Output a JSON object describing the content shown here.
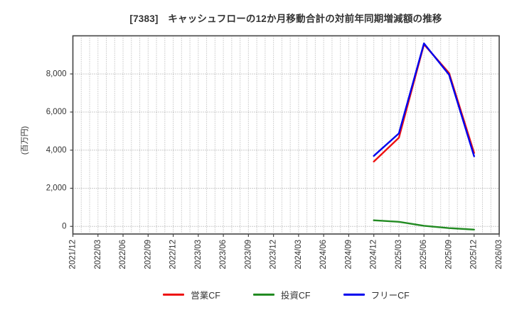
{
  "title": "[7383]　キャッシュフローの12か月移動合計の対前年同期増減額の推移",
  "y_axis_label": "(百万円)",
  "chart_data": {
    "type": "line",
    "categories": [
      "2021/12",
      "2022/03",
      "2022/06",
      "2022/09",
      "2022/12",
      "2023/03",
      "2023/06",
      "2023/09",
      "2023/12",
      "2024/03",
      "2024/06",
      "2024/09",
      "2024/12",
      "2025/03",
      "2025/06",
      "2025/09",
      "2025/12",
      "2026/03"
    ],
    "series": [
      {
        "name": "営業CF",
        "color": "#ee1111",
        "values": [
          null,
          null,
          null,
          null,
          null,
          null,
          null,
          null,
          null,
          null,
          null,
          null,
          3400,
          4650,
          9550,
          8050,
          3850,
          null
        ]
      },
      {
        "name": "投資CF",
        "color": "#228b22",
        "values": [
          null,
          null,
          null,
          null,
          null,
          null,
          null,
          null,
          null,
          null,
          null,
          null,
          320,
          240,
          30,
          -90,
          -170,
          null
        ]
      },
      {
        "name": "フリーCF",
        "color": "#0000ee",
        "values": [
          null,
          null,
          null,
          null,
          null,
          null,
          null,
          null,
          null,
          null,
          null,
          null,
          3700,
          4880,
          9600,
          7960,
          3680,
          null
        ]
      }
    ],
    "ylim": [
      -400,
      10000
    ],
    "yticks": [
      0,
      2000,
      4000,
      6000,
      8000
    ],
    "ytick_labels": [
      "0",
      "2,000",
      "4,000",
      "6,000",
      "8,000"
    ],
    "minor_x_divisions_per_interval": 3,
    "grid": "dotted",
    "legend_position": "bottom"
  },
  "colors": {
    "spine": "#444444",
    "grid_horizontal": "#999999",
    "grid_vertical": "#aaaaaa",
    "tick_label": "#333333",
    "title_text": "#333333"
  }
}
